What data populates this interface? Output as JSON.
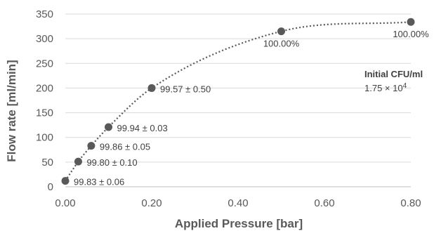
{
  "chart_data": {
    "type": "scatter",
    "xlabel": "Applied Pressure [bar]",
    "ylabel": "Flow rate [ml/min]",
    "xlim": [
      0,
      0.8
    ],
    "ylim": [
      0,
      350
    ],
    "x_ticks": [
      "0.00",
      "0.20",
      "0.40",
      "0.60",
      "0.80"
    ],
    "x_tick_values": [
      0,
      0.2,
      0.4,
      0.6,
      0.8
    ],
    "y_ticks": [
      "0",
      "50",
      "100",
      "150",
      "200",
      "250",
      "300",
      "350"
    ],
    "y_tick_values": [
      0,
      50,
      100,
      150,
      200,
      250,
      300,
      350
    ],
    "grid": "horizontal",
    "trendline": "dotted",
    "points": [
      {
        "x": 0.0,
        "y": 12,
        "label": "99.83 ± 0.06"
      },
      {
        "x": 0.03,
        "y": 51,
        "label": "99.80 ± 0.10"
      },
      {
        "x": 0.06,
        "y": 83,
        "label": "99.86 ± 0.05"
      },
      {
        "x": 0.1,
        "y": 121,
        "label": "99.94 ± 0.03"
      },
      {
        "x": 0.2,
        "y": 200,
        "label": "99.57 ± 0.50"
      },
      {
        "x": 0.5,
        "y": 315,
        "label": "100.00%"
      },
      {
        "x": 0.8,
        "y": 334,
        "label": "100.00%"
      }
    ],
    "annotation": {
      "title": "Initial CFU/ml",
      "value_base": "1.75 × 10",
      "value_exponent": "4"
    },
    "colors": {
      "marker": "#595959",
      "grid": "#d9d9d9",
      "text": "#595959"
    }
  }
}
